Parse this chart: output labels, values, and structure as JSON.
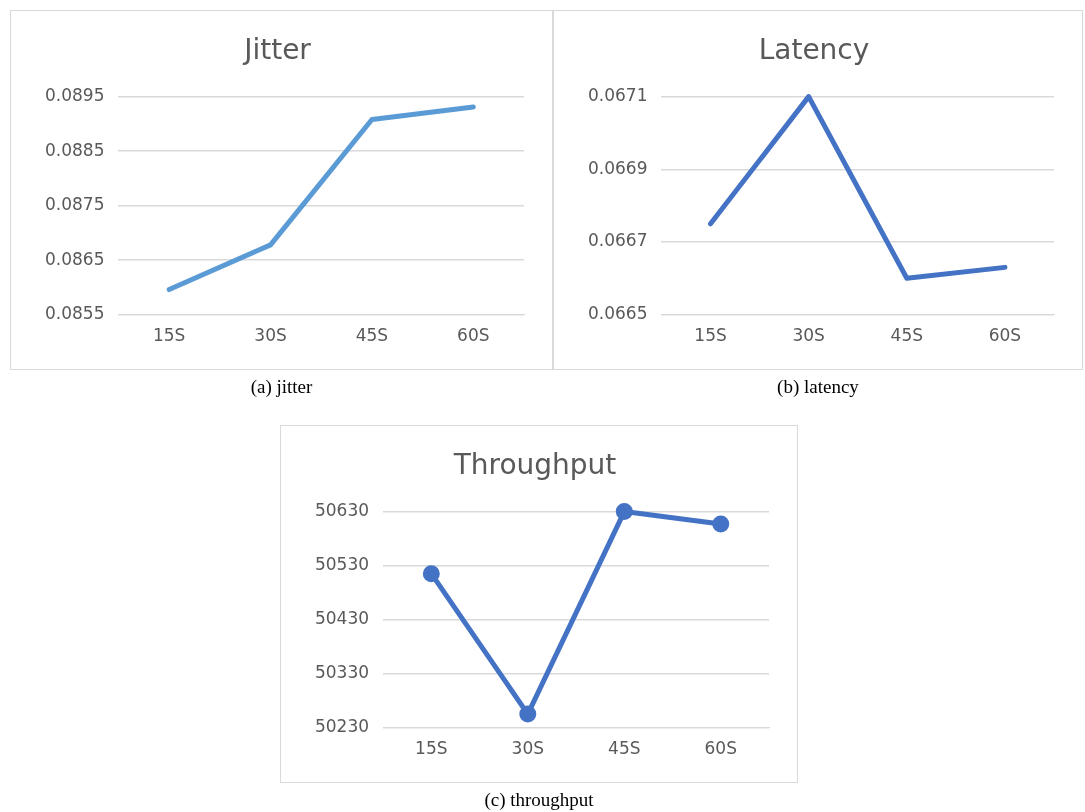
{
  "chart_data": [
    {
      "type": "line",
      "title": "Jitter",
      "categories": [
        "15S",
        "30S",
        "45S",
        "60S"
      ],
      "series": [
        {
          "color": "#5b9bd5",
          "values": [
            0.08596,
            0.08678,
            0.08908,
            0.08931
          ]
        }
      ],
      "ylim": [
        0.0855,
        0.0895
      ],
      "yticks": [
        0.0855,
        0.0865,
        0.0875,
        0.0885,
        0.0895
      ],
      "grid": "y",
      "legend": false,
      "marker": "none",
      "annotations": [
        "(a) jitter"
      ]
    },
    {
      "type": "line",
      "title": "Latency",
      "categories": [
        "15S",
        "30S",
        "45S",
        "60S"
      ],
      "series": [
        {
          "color": "#4472c4",
          "values": [
            0.06675,
            0.0671,
            0.0666,
            0.06663
          ]
        }
      ],
      "ylim": [
        0.0665,
        0.0671
      ],
      "yticks": [
        0.0665,
        0.0667,
        0.0669,
        0.0671
      ],
      "grid": "y",
      "legend": false,
      "marker": "none",
      "annotations": [
        "(b) latency"
      ]
    },
    {
      "type": "line",
      "title": "Throughput",
      "categories": [
        "15S",
        "30S",
        "45S",
        "60S"
      ],
      "series": [
        {
          "color": "#4472c4",
          "values": [
            50515,
            50255,
            50630,
            50607
          ]
        }
      ],
      "ylim": [
        50230,
        50630
      ],
      "yticks": [
        50230,
        50330,
        50430,
        50530,
        50630
      ],
      "grid": "y",
      "legend": false,
      "marker": "circle",
      "annotations": [
        "(c) throughput"
      ]
    }
  ]
}
